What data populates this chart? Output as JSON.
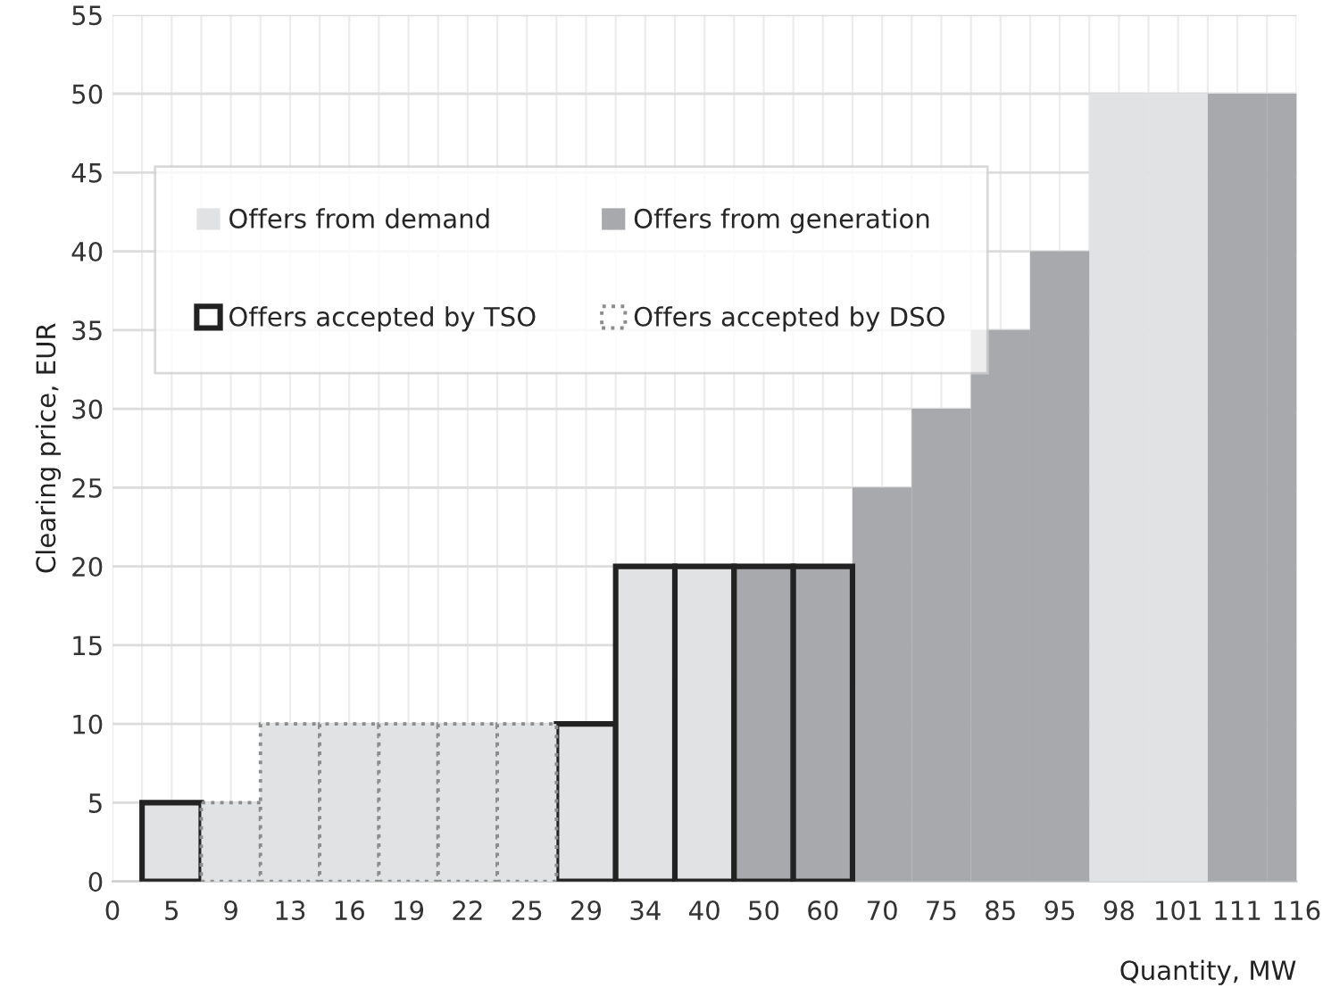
{
  "chart_data": {
    "type": "bar",
    "xlabel": "Quantity, MW",
    "ylabel": "Clearing price, EUR",
    "categories": [
      "0",
      "5",
      "9",
      "13",
      "16",
      "19",
      "22",
      "25",
      "29",
      "34",
      "40",
      "50",
      "60",
      "70",
      "75",
      "85",
      "95",
      "98",
      "101",
      "111",
      "116"
    ],
    "series": [
      {
        "name": "Offers from demand",
        "color": "#e1e2e4",
        "values": [
          null,
          null,
          null,
          null,
          null,
          null,
          null,
          null,
          null,
          null,
          null,
          null,
          null,
          null,
          null,
          null,
          null,
          50,
          50,
          null,
          null
        ]
      },
      {
        "name": "Offers from generation",
        "color": "#a8a9ac",
        "values": [
          null,
          null,
          null,
          null,
          null,
          null,
          null,
          null,
          null,
          null,
          null,
          null,
          null,
          25,
          30,
          35,
          40,
          null,
          null,
          50,
          50
        ]
      },
      {
        "name": "Offers accepted by TSO",
        "color": "#222222",
        "line_style": "solid",
        "values": [
          null,
          5,
          null,
          null,
          null,
          null,
          null,
          null,
          10,
          20,
          20,
          20,
          20,
          null,
          null,
          null,
          null,
          null,
          null,
          null,
          null
        ],
        "colors": [
          null,
          "#e1e2e4",
          null,
          null,
          null,
          null,
          null,
          null,
          "#e1e2e4",
          "#e1e2e4",
          "#e1e2e4",
          "#a8a9ac",
          "#a8a9ac",
          null,
          null,
          null,
          null,
          null,
          null,
          null,
          null
        ]
      },
      {
        "name": "Offers accepted by DSO",
        "color": "#8c8c8c",
        "line_style": "dotted",
        "values": [
          null,
          null,
          5,
          10,
          10,
          10,
          10,
          10,
          null,
          null,
          null,
          null,
          null,
          null,
          null,
          null,
          null,
          null,
          null,
          null,
          null
        ],
        "colors": [
          null,
          null,
          "#e1e2e4",
          "#e1e2e4",
          "#e1e2e4",
          "#e1e2e4",
          "#e1e2e4",
          "#e1e2e4",
          null,
          null,
          null,
          null,
          null,
          null,
          null,
          null,
          null,
          null,
          null,
          null,
          null
        ]
      }
    ],
    "ylim": [
      0,
      55
    ],
    "yticks": [
      0,
      5,
      10,
      15,
      20,
      25,
      30,
      35,
      40,
      45,
      50,
      55
    ],
    "grid": true,
    "legend": "top left"
  }
}
